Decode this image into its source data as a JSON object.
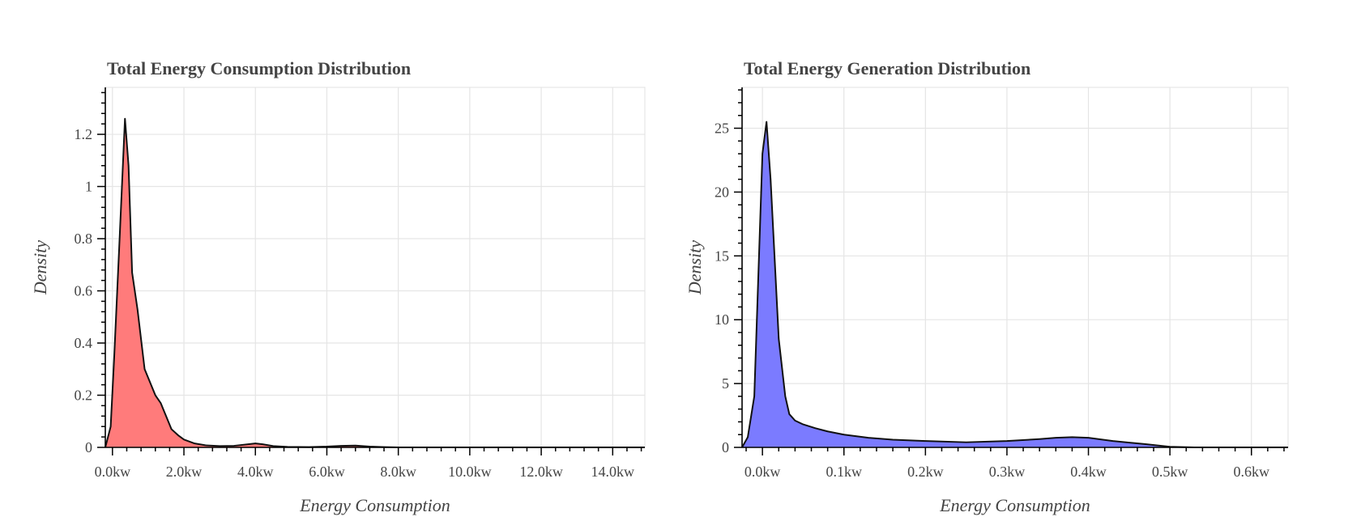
{
  "chart_data": [
    {
      "type": "area",
      "title": "Total Energy Consumption Distribution",
      "xlabel": "Energy Consumption",
      "ylabel": "Density",
      "xlim": [
        -0.2,
        14.9
      ],
      "ylim": [
        0,
        1.38
      ],
      "x_ticks": [
        0,
        2,
        4,
        6,
        8,
        10,
        12,
        14
      ],
      "x_tick_labels": [
        "0.0kw",
        "2.0kw",
        "4.0kw",
        "6.0kw",
        "8.0kw",
        "10.0kw",
        "12.0kw",
        "14.0kw"
      ],
      "y_ticks": [
        0,
        0.2,
        0.4,
        0.6,
        0.8,
        1,
        1.2
      ],
      "y_tick_labels": [
        "0",
        "0.2",
        "0.4",
        "0.6",
        "0.8",
        "1",
        "1.2"
      ],
      "grid": true,
      "fill_color": "#ff7b7b",
      "line_color": "#111111",
      "series": [
        {
          "x": [
            -0.2,
            -0.05,
            0.05,
            0.2,
            0.35,
            0.45,
            0.55,
            0.7,
            0.9,
            1.2,
            1.35,
            1.5,
            1.65,
            1.85,
            2.0,
            2.3,
            2.6,
            3.0,
            3.4,
            3.8,
            4.0,
            4.2,
            4.5,
            4.9,
            5.5,
            6.0,
            6.4,
            6.8,
            7.2,
            7.6,
            8.0,
            10.0,
            12.0,
            14.9
          ],
          "y": [
            0.0,
            0.08,
            0.35,
            0.8,
            1.26,
            1.08,
            0.67,
            0.53,
            0.3,
            0.2,
            0.17,
            0.12,
            0.07,
            0.045,
            0.03,
            0.015,
            0.008,
            0.005,
            0.006,
            0.012,
            0.015,
            0.012,
            0.005,
            0.002,
            0.001,
            0.003,
            0.006,
            0.007,
            0.003,
            0.001,
            0.0,
            0.0,
            0.0,
            0.0
          ]
        }
      ]
    },
    {
      "type": "area",
      "title": "Total Energy Generation Distribution",
      "xlabel": "Energy Consumption",
      "ylabel": "Density",
      "xlim": [
        -0.025,
        0.645
      ],
      "ylim": [
        0,
        28.2
      ],
      "x_ticks": [
        0,
        0.1,
        0.2,
        0.3,
        0.4,
        0.5,
        0.6
      ],
      "x_tick_labels": [
        "0.0kw",
        "0.1kw",
        "0.2kw",
        "0.3kw",
        "0.4kw",
        "0.5kw",
        "0.6kw"
      ],
      "y_ticks": [
        0,
        5,
        10,
        15,
        20,
        25
      ],
      "y_tick_labels": [
        "0",
        "5",
        "10",
        "15",
        "20",
        "25"
      ],
      "grid": true,
      "fill_color": "#7b7bff",
      "line_color": "#111111",
      "series": [
        {
          "x": [
            -0.025,
            -0.018,
            -0.01,
            0.0,
            0.005,
            0.01,
            0.02,
            0.028,
            0.033,
            0.04,
            0.05,
            0.065,
            0.08,
            0.1,
            0.13,
            0.16,
            0.2,
            0.25,
            0.3,
            0.34,
            0.36,
            0.38,
            0.4,
            0.43,
            0.47,
            0.5,
            0.53,
            0.645
          ],
          "y": [
            0.0,
            0.8,
            4.0,
            23.0,
            25.5,
            21.0,
            8.5,
            4.0,
            2.6,
            2.1,
            1.8,
            1.5,
            1.25,
            1.0,
            0.75,
            0.6,
            0.5,
            0.4,
            0.5,
            0.65,
            0.75,
            0.8,
            0.75,
            0.5,
            0.25,
            0.05,
            0.0,
            0.0
          ]
        }
      ]
    }
  ]
}
